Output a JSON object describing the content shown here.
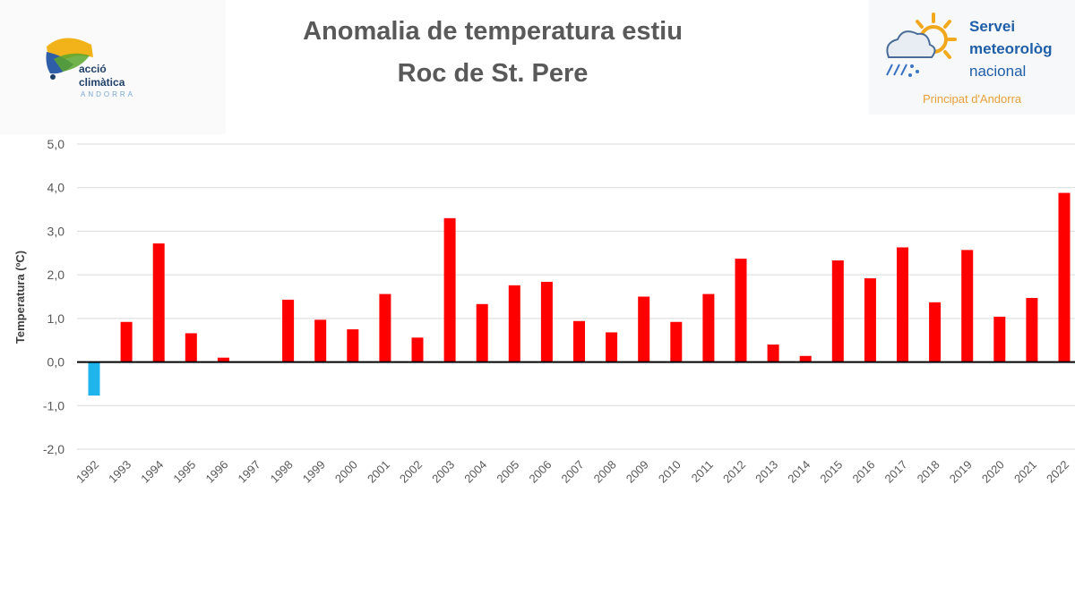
{
  "header": {
    "title_line1": "Anomalia de temperatura estiu",
    "title_line2": "Roc de St. Pere"
  },
  "logo_left": {
    "line1": "acció",
    "line2": "climàtica",
    "line3": "ANDORRA"
  },
  "logo_right": {
    "line1": "Servei",
    "line2": "meteorològ",
    "line3": "nacional",
    "line4": "Principat d'Andorra"
  },
  "colors": {
    "positive": "#ff0000",
    "negative": "#1fb4ec",
    "title": "#595959",
    "axis_text": "#595959",
    "grid": "#d9d9d9",
    "zero_line": "#000000"
  },
  "chart_data": {
    "type": "bar",
    "title": "Anomalia de temperatura estiu Roc de St. Pere",
    "xlabel": "",
    "ylabel": "Temperatura (ºC)",
    "ylim": [
      -2.0,
      5.0
    ],
    "yticks": [
      "5,0",
      "4,0",
      "3,0",
      "2,0",
      "1,0",
      "0,0",
      "-1,0",
      "-2,0"
    ],
    "grid": true,
    "legend": "none",
    "categories": [
      "1992",
      "1993",
      "1994",
      "1995",
      "1996",
      "1997",
      "1998",
      "1999",
      "2000",
      "2001",
      "2002",
      "2003",
      "2004",
      "2005",
      "2006",
      "2007",
      "2008",
      "2009",
      "2010",
      "2011",
      "2012",
      "2013",
      "2014",
      "2015",
      "2016",
      "2017",
      "2018",
      "2019",
      "2020",
      "2021",
      "2022"
    ],
    "values": [
      -0.77,
      0.92,
      2.72,
      0.66,
      0.1,
      0.0,
      1.43,
      0.97,
      0.75,
      1.56,
      0.56,
      3.3,
      1.33,
      1.76,
      1.84,
      0.94,
      0.68,
      1.5,
      0.92,
      1.56,
      2.37,
      0.4,
      0.14,
      2.33,
      1.92,
      2.63,
      1.37,
      2.57,
      1.04,
      1.47,
      3.88
    ]
  }
}
